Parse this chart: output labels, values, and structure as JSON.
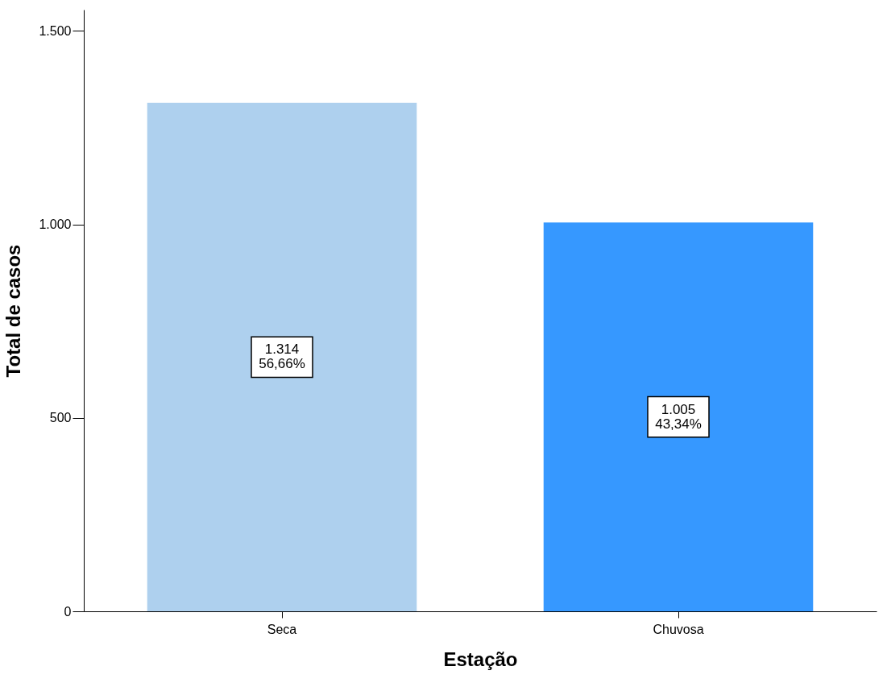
{
  "chart_data": {
    "type": "bar",
    "xlabel": "Estação",
    "ylabel": "Total de casos",
    "categories": [
      "Seca",
      "Chuvosa"
    ],
    "values": [
      1314,
      1005
    ],
    "colors": [
      "#aed0ee",
      "#3698ff"
    ],
    "value_labels": [
      "1.314\n56,66%",
      "1.005\n43,34%"
    ],
    "ylim": [
      0,
      1555
    ],
    "yticks": [
      0,
      500,
      {
        "value": 1000,
        "label": "1.000"
      },
      {
        "value": 1500,
        "label": "1.500"
      }
    ],
    "grid": false
  }
}
